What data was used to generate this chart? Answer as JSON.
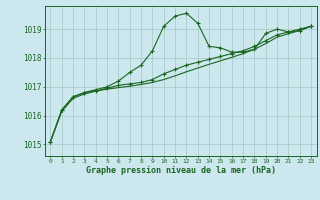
{
  "title": "Graphe pression niveau de la mer (hPa)",
  "bg_color": "#cce8ee",
  "grid_color": "#aacccc",
  "line_color": "#1a6620",
  "xlim": [
    -0.5,
    23.5
  ],
  "ylim": [
    1014.6,
    1019.8
  ],
  "yticks": [
    1015,
    1016,
    1017,
    1018,
    1019
  ],
  "xtick_labels": [
    "0",
    "1",
    "2",
    "3",
    "4",
    "5",
    "6",
    "7",
    "8",
    "9",
    "10",
    "11",
    "12",
    "13",
    "14",
    "15",
    "16",
    "17",
    "18",
    "19",
    "20",
    "21",
    "22",
    "23"
  ],
  "series1_x": [
    0,
    1,
    2,
    3,
    4,
    5,
    6,
    7,
    8,
    9,
    10,
    11,
    12,
    13,
    14,
    15,
    16,
    17,
    18,
    19,
    20,
    21,
    22,
    23
  ],
  "series1_y": [
    1015.1,
    1016.2,
    1016.65,
    1016.8,
    1016.9,
    1017.0,
    1017.2,
    1017.5,
    1017.75,
    1018.25,
    1019.1,
    1019.45,
    1019.55,
    1019.2,
    1018.4,
    1018.35,
    1018.2,
    1018.2,
    1018.3,
    1018.85,
    1019.0,
    1018.9,
    1019.0,
    1019.1
  ],
  "series2_x": [
    0,
    1,
    2,
    3,
    4,
    5,
    6,
    7,
    8,
    9,
    10,
    11,
    12,
    13,
    14,
    15,
    16,
    17,
    18,
    19,
    20,
    21,
    22,
    23
  ],
  "series2_y": [
    1015.1,
    1016.2,
    1016.65,
    1016.8,
    1016.85,
    1016.95,
    1017.05,
    1017.1,
    1017.15,
    1017.25,
    1017.45,
    1017.6,
    1017.75,
    1017.85,
    1017.95,
    1018.05,
    1018.15,
    1018.25,
    1018.4,
    1018.6,
    1018.8,
    1018.9,
    1018.95,
    1019.1
  ],
  "series3_x": [
    0,
    1,
    2,
    3,
    4,
    5,
    6,
    7,
    8,
    9,
    10,
    11,
    12,
    13,
    14,
    15,
    16,
    17,
    18,
    19,
    20,
    21,
    22,
    23
  ],
  "series3_y": [
    1015.1,
    1016.15,
    1016.6,
    1016.75,
    1016.85,
    1016.92,
    1016.97,
    1017.02,
    1017.08,
    1017.15,
    1017.25,
    1017.38,
    1017.52,
    1017.65,
    1017.78,
    1017.9,
    1018.02,
    1018.15,
    1018.3,
    1018.5,
    1018.72,
    1018.84,
    1018.95,
    1019.1
  ]
}
